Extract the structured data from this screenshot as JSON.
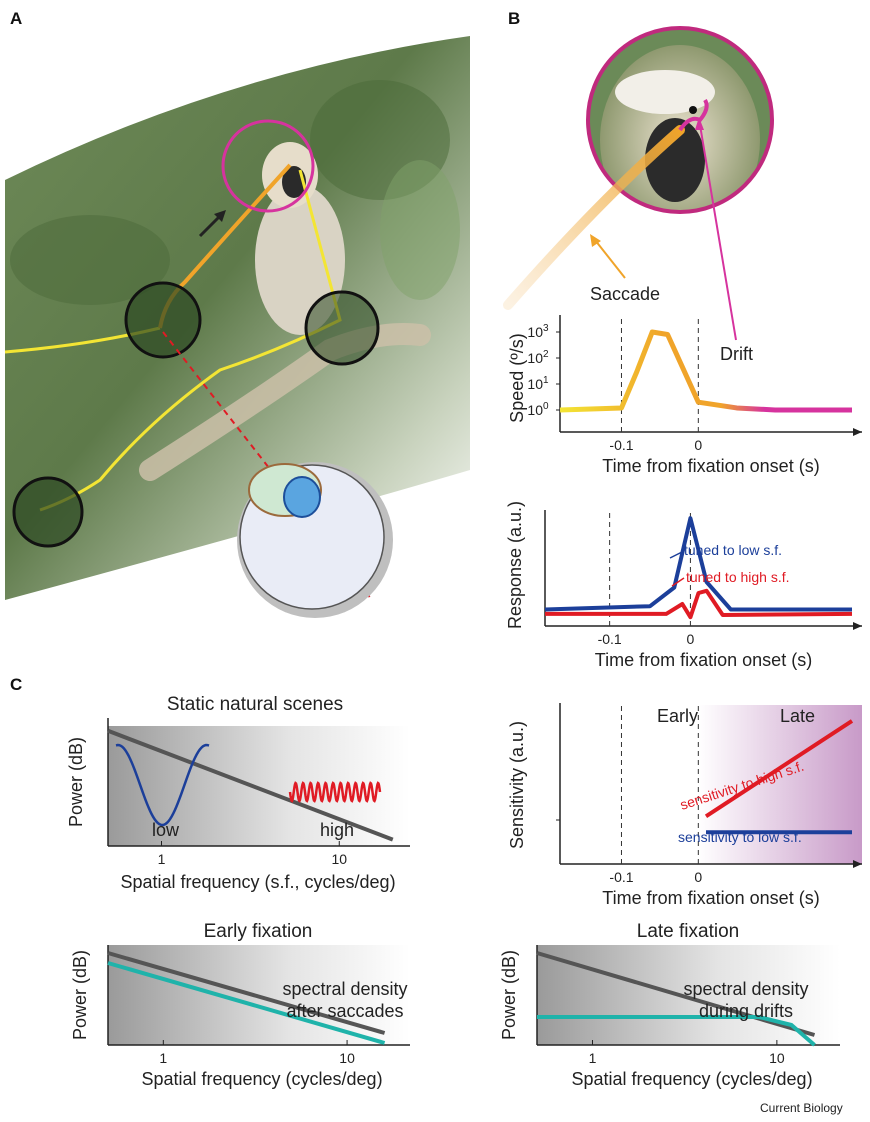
{
  "figure": {
    "panel_a": "A",
    "panel_b": "B",
    "panel_c": "C",
    "credit": "Current Biology"
  },
  "panel_b_labels": {
    "saccade": "Saccade",
    "drift": "Drift"
  },
  "colors": {
    "saccade": "#f0a42a",
    "drift": "#d6339e",
    "low_sf": "#1c3f9a",
    "high_sf": "#e01b24",
    "spectral": "#1fb3aa",
    "gray_line": "#555555",
    "eye_path": "#f3e534",
    "late_region": "#c89ac8"
  },
  "chart_data": [
    {
      "id": "speed",
      "type": "line",
      "xlabel": "Time from fixation onset (s)",
      "ylabel": "Speed (º/s)",
      "x_ticks": [
        "-0.1",
        "0"
      ],
      "y_ticks": [
        "10^0",
        "10^1",
        "10^2",
        "10^3"
      ],
      "y_scale": "log",
      "markers": [
        "-0.1 (dashed)",
        "0 (dashed)"
      ],
      "series": [
        {
          "name": "",
          "x": [
            -0.18,
            -0.1,
            -0.08,
            -0.06,
            -0.04,
            -0.02,
            0.0,
            0.05,
            0.1,
            0.15,
            0.2
          ],
          "y": [
            1,
            1.2,
            30,
            1000,
            800,
            40,
            2,
            1.2,
            1,
            1,
            1
          ]
        }
      ],
      "annotations": [
        "Saccade",
        "Drift"
      ]
    },
    {
      "id": "response",
      "type": "line",
      "xlabel": "Time from fixation onset (s)",
      "ylabel": "Response (a.u.)",
      "x_ticks": [
        "-0.1",
        "0"
      ],
      "series": [
        {
          "name": "tuned to low s.f.",
          "x": [
            -0.18,
            -0.05,
            -0.02,
            0.0,
            0.02,
            0.05,
            0.2
          ],
          "y": [
            0.15,
            0.18,
            0.35,
            0.98,
            0.4,
            0.15,
            0.15
          ]
        },
        {
          "name": "tuned to high s.f.",
          "x": [
            -0.18,
            -0.03,
            -0.01,
            0.0,
            0.01,
            0.02,
            0.04,
            0.2
          ],
          "y": [
            0.11,
            0.11,
            0.2,
            0.08,
            0.3,
            0.32,
            0.1,
            0.11
          ]
        }
      ]
    },
    {
      "id": "static_scenes",
      "type": "line",
      "title": "Static natural scenes",
      "xlabel": "Spatial frequency (s.f., cycles/deg)",
      "ylabel": "Power (dB)",
      "x_scale": "log",
      "x_ticks": [
        "1",
        "10"
      ],
      "series": [
        {
          "name": "",
          "x": [
            0.5,
            20
          ],
          "y": [
            0.9,
            0.05
          ]
        }
      ],
      "annotations": [
        "low",
        "high"
      ]
    },
    {
      "id": "sensitivity",
      "type": "line",
      "xlabel": "Time from fixation onset (s)",
      "ylabel": "Sensitivity (a.u.)",
      "x_ticks": [
        "-0.1",
        "0"
      ],
      "regions": [
        "Early",
        "Late"
      ],
      "series": [
        {
          "name": "sensitivity to high s.f.",
          "x": [
            0.01,
            0.2
          ],
          "y": [
            0.3,
            0.9
          ]
        },
        {
          "name": "sensitivity to low s.f.",
          "x": [
            0.01,
            0.2
          ],
          "y": [
            0.2,
            0.2
          ]
        }
      ]
    },
    {
      "id": "early_fixation",
      "type": "line",
      "title": "Early fixation",
      "xlabel": "Spatial frequency (cycles/deg)",
      "ylabel": "Power (dB)",
      "x_scale": "log",
      "x_ticks": [
        "1",
        "10"
      ],
      "series": [
        {
          "name": "",
          "x": [
            0.5,
            16
          ],
          "y": [
            0.92,
            0.12
          ]
        },
        {
          "name": "spectral density after saccades",
          "x": [
            0.5,
            16
          ],
          "y": [
            0.82,
            0.02
          ]
        }
      ]
    },
    {
      "id": "late_fixation",
      "type": "line",
      "title": "Late fixation",
      "xlabel": "Spatial frequency (cycles/deg)",
      "ylabel": "Power (dB)",
      "x_scale": "log",
      "x_ticks": [
        "1",
        "10"
      ],
      "series": [
        {
          "name": "",
          "x": [
            0.5,
            16
          ],
          "y": [
            0.92,
            0.1
          ]
        },
        {
          "name": "spectral density during drifts",
          "x": [
            0.5,
            8,
            12,
            16
          ],
          "y": [
            0.28,
            0.28,
            0.2,
            0.0
          ]
        }
      ]
    }
  ]
}
